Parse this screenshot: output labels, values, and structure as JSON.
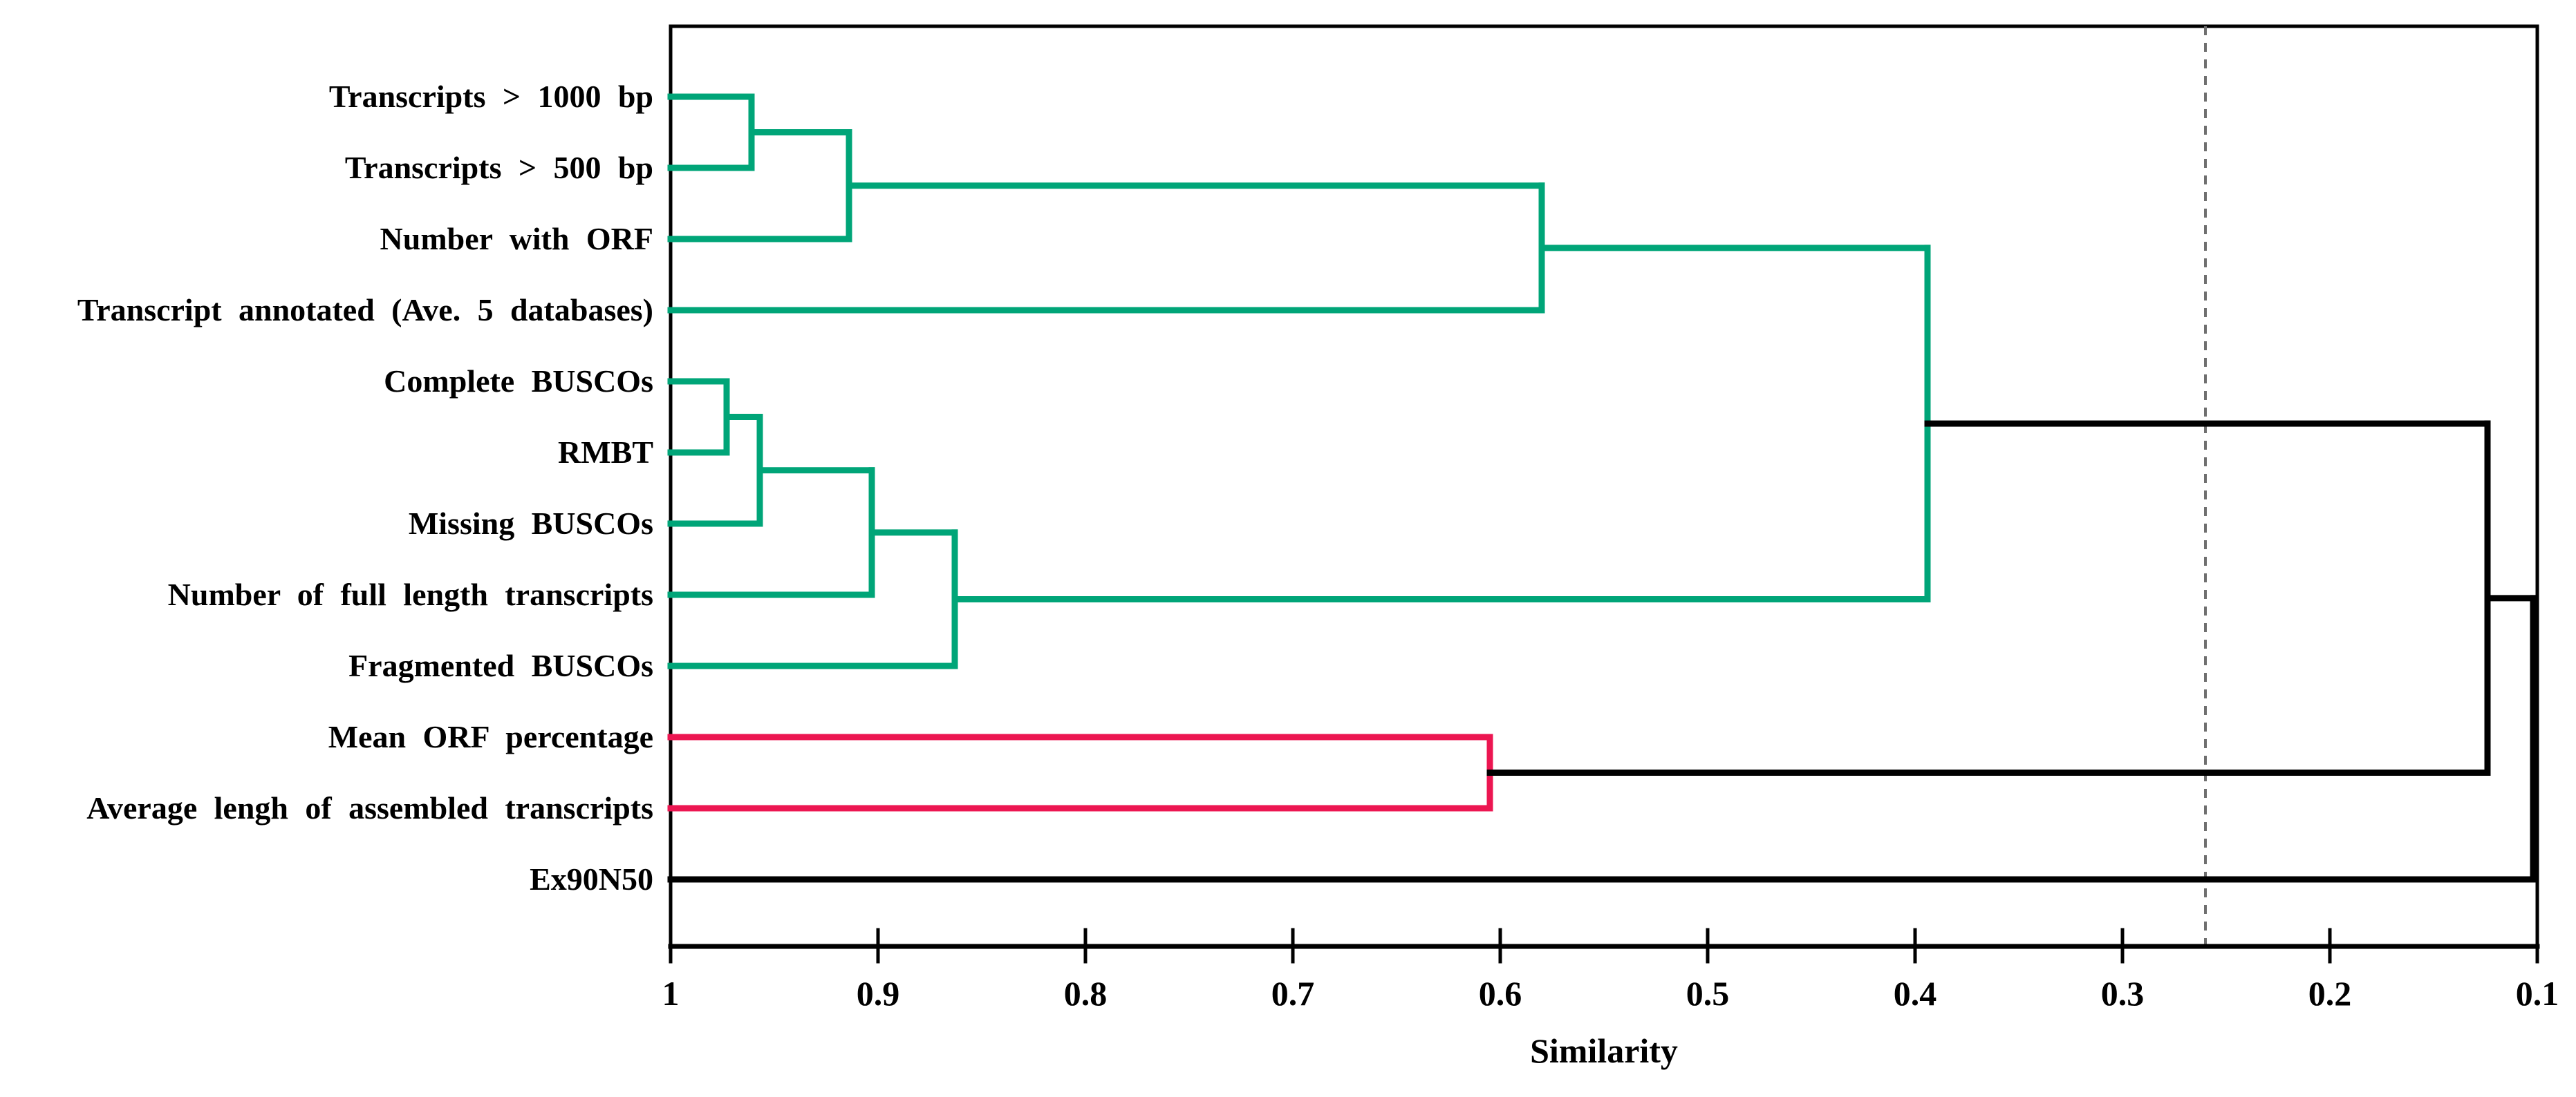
{
  "figure": {
    "background": "#ffffff",
    "xlabel": "Similarity"
  },
  "chart_data": {
    "type": "dendrogram",
    "orientation": "horizontal, leaves on left, similarity decreasing to the right",
    "xlabel": "Similarity",
    "axis": {
      "label": "Similarity",
      "max": 1.0,
      "min": 0.1,
      "tick_labels": [
        "1",
        "0.9",
        "0.8",
        "0.7",
        "0.6",
        "0.5",
        "0.4",
        "0.3",
        "0.2",
        "0.1"
      ],
      "direction": "values decrease left to right",
      "grid": false
    },
    "cutoff_line": {
      "similarity": 0.26,
      "style": "dashed",
      "color": "#6f6f6f"
    },
    "colors": {
      "cluster_green": "#00a578",
      "cluster_red": "#ec1651",
      "link_black": "#000000"
    },
    "leaves": [
      {
        "label": "Transcripts > 1000 bp"
      },
      {
        "label": "Transcripts > 500 bp"
      },
      {
        "label": "Number with ORF"
      },
      {
        "label": "Transcript annotated (Ave. 5 databases)"
      },
      {
        "label": "Complete BUSCOs"
      },
      {
        "label": "RMBT"
      },
      {
        "label": "Missing BUSCOs"
      },
      {
        "label": "Number of full length transcripts"
      },
      {
        "label": "Fragmented BUSCOs"
      },
      {
        "label": "Mean ORF percentage"
      },
      {
        "label": "Average lengh of assembled transcripts"
      },
      {
        "label": "Ex90N50"
      }
    ],
    "merges": [
      {
        "id": "N1",
        "children": [
          0,
          1
        ],
        "similarity": 0.961,
        "color": "green"
      },
      {
        "id": "N2",
        "children": [
          "N1",
          2
        ],
        "similarity": 0.914,
        "color": "green"
      },
      {
        "id": "N3",
        "children": [
          "N2",
          3
        ],
        "similarity": 0.58,
        "color": "green"
      },
      {
        "id": "N4",
        "children": [
          4,
          5
        ],
        "similarity": 0.973,
        "color": "green"
      },
      {
        "id": "N5",
        "children": [
          "N4",
          6
        ],
        "similarity": 0.957,
        "color": "green"
      },
      {
        "id": "N6",
        "children": [
          "N5",
          7
        ],
        "similarity": 0.903,
        "color": "green"
      },
      {
        "id": "N7",
        "children": [
          "N6",
          8
        ],
        "similarity": 0.863,
        "color": "green"
      },
      {
        "id": "N8",
        "children": [
          "N3",
          "N7"
        ],
        "similarity": 0.394,
        "color": "green"
      },
      {
        "id": "N9",
        "children": [
          9,
          10
        ],
        "similarity": 0.605,
        "color": "red"
      },
      {
        "id": "N10",
        "children": [
          "N8",
          "N9"
        ],
        "similarity": 0.124,
        "color": "black"
      },
      {
        "id": "N11",
        "children": [
          "N10",
          11
        ],
        "similarity": 0.102,
        "color": "black"
      }
    ]
  }
}
